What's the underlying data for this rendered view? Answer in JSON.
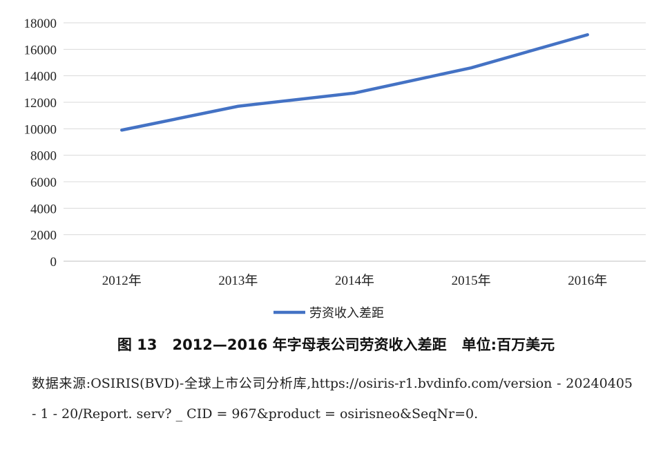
{
  "chart_data": {
    "type": "line",
    "categories": [
      "2012年",
      "2013年",
      "2014年",
      "2015年",
      "2016年"
    ],
    "series": [
      {
        "name": "劳资收入差距",
        "values": [
          9900,
          11700,
          12700,
          14600,
          17100
        ],
        "color": "#4472C4"
      }
    ],
    "ylim": [
      0,
      18000
    ],
    "yticks": [
      0,
      2000,
      4000,
      6000,
      8000,
      10000,
      12000,
      14000,
      16000,
      18000
    ],
    "grid": true,
    "legend": "bottom"
  },
  "caption": {
    "figure_no": "图 13",
    "title": "2012—2016 年字母表公司劳资收入差距",
    "unit": "单位:百万美元"
  },
  "source_note": "数据来源:OSIRIS(BVD)-全球上市公司分析库,https://osiris-r1.bvdinfo.com/version - 20240405 - 1 - 20/Report. serv? _ CID = 967&product = osirisneo&SeqNr=0."
}
